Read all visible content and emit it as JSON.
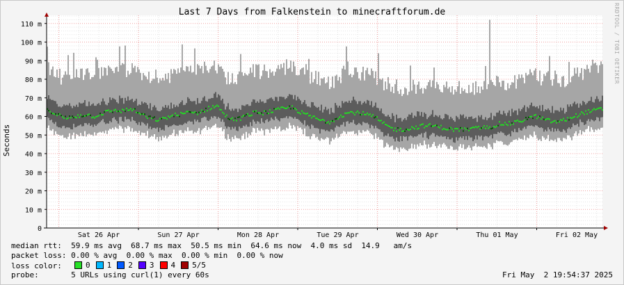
{
  "chart_data": {
    "type": "area",
    "title": "Last 7 Days from Falkenstein to minecraftforum.de",
    "ylabel": "Seconds",
    "vertical_label": "RRDTOOL / TOBI OETIKER",
    "ylim": [
      0,
      115
    ],
    "y_ticks": [
      "0",
      "10 m",
      "20 m",
      "30 m",
      "40 m",
      "50 m",
      "60 m",
      "70 m",
      "80 m",
      "90 m",
      "100 m",
      "110 m"
    ],
    "x_ticks": [
      "Sat 26 Apr",
      "Sun 27 Apr",
      "Mon 28 Apr",
      "Tue 29 Apr",
      "Wed 30 Apr",
      "Thu 01 May",
      "Fri 02 May"
    ],
    "series": [
      {
        "name": "median rtt",
        "color": "#22dd22",
        "values": [
          64,
          61,
          59,
          60,
          61,
          60,
          62,
          63,
          63,
          64,
          61,
          59,
          58,
          60,
          61,
          62,
          62,
          64,
          66,
          60,
          58,
          60,
          62,
          62,
          63,
          64,
          65,
          62,
          60,
          58,
          57,
          60,
          62,
          62,
          61,
          59,
          55,
          53,
          53,
          54,
          55,
          55,
          54,
          53,
          53,
          53,
          54,
          54,
          56,
          56,
          57,
          59,
          60,
          58,
          57,
          58,
          60,
          62,
          63,
          64
        ]
      }
    ],
    "band_inner": {
      "color": "#5c5c5c",
      "low": 5,
      "high": 6
    },
    "band_outer": {
      "color": "#a6a6a6",
      "low": 10,
      "high": 21
    },
    "spike": {
      "x_index": 47,
      "value": 112
    },
    "grid": true
  },
  "legend": {
    "median_rtt": "median rtt:  59.9 ms avg  68.7 ms max  50.5 ms min  64.6 ms now  4.0 ms sd  14.9   am/s",
    "packet_loss": "packet loss: 0.00 % avg  0.00 % max  0.00 % min  0.00 % now",
    "loss_color_label": "loss color:",
    "loss_colors": [
      {
        "label": "0",
        "color": "#26e026"
      },
      {
        "label": "1",
        "color": "#00b8ff"
      },
      {
        "label": "2",
        "color": "#0059ff"
      },
      {
        "label": "3",
        "color": "#5500ff"
      },
      {
        "label": "4",
        "color": "#ff0000"
      },
      {
        "label": "5/5",
        "color": "#a00000"
      }
    ],
    "probe": "probe:       5 URLs using curl(1) every 60s",
    "timestamp": "Fri May  2 19:54:37 2025"
  }
}
